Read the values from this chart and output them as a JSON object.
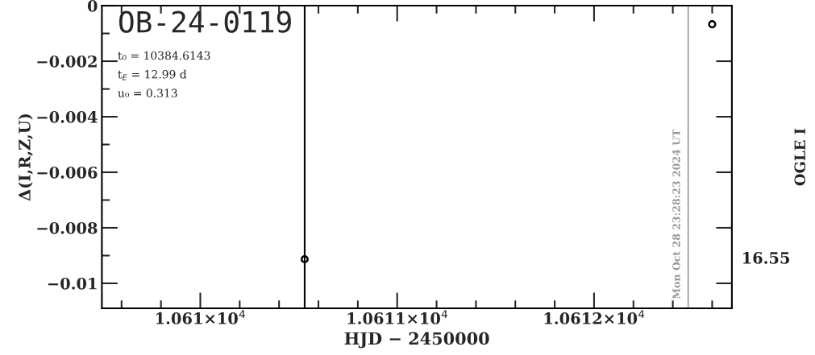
{
  "chart_data": {
    "type": "scatter",
    "title": "OB-24-0119",
    "annotations": [
      "t₀ = 10384.6143",
      "t$_{E}$ = 12.99 d",
      "u₀ = 0.313",
      "16.55",
      "OGLE I",
      "Mon Oct 28 23:28:23 2024 UT"
    ],
    "xlabel": "HJD − 2450000",
    "ylabel": "Δ(I,R,Z,U)",
    "series": [
      {
        "color": "#000000",
        "x": [
          10612.6
        ],
        "values": [
          -0.00067
        ],
        "marker": "circle"
      },
      {
        "color": "#000000",
        "x": [
          10610.53
        ],
        "values": [
          -0.00913
        ],
        "marker": "circle"
      }
    ],
    "xlim": [
      10609.5,
      10612.7
    ],
    "xticks": [
      {
        "value": 10609.6,
        "label": null
      },
      {
        "value": 10609.8,
        "label": null
      },
      {
        "value": 10610,
        "label": "1.061×10$^{4}$"
      },
      {
        "value": 10610.2,
        "label": null
      },
      {
        "value": 10610.4,
        "label": null
      },
      {
        "value": 10610.6,
        "label": null
      },
      {
        "value": 10610.8,
        "label": null
      },
      {
        "value": 10611,
        "label": "1.0611×10$^{4}$"
      },
      {
        "value": 10611.2,
        "label": null
      },
      {
        "value": 10611.4,
        "label": null
      },
      {
        "value": 10611.6,
        "label": null
      },
      {
        "value": 10611.8,
        "label": null
      },
      {
        "value": 10612,
        "label": "1.0612×10$^{4}$"
      },
      {
        "value": 10612.2,
        "label": null
      },
      {
        "value": 10612.4,
        "label": null
      },
      {
        "value": 10612.6,
        "label": null
      }
    ],
    "ylim": [
      -0.0109,
      0
    ],
    "yticks": [
      0,
      {
        "value": -0.001,
        "label": null
      },
      {
        "value": -0.002,
        "label": "−0.002"
      },
      {
        "value": -0.003,
        "label": null
      },
      {
        "value": -0.004,
        "label": "−0.004"
      },
      {
        "value": -0.005,
        "label": null
      },
      {
        "value": -0.006,
        "label": "−0.006"
      },
      {
        "value": -0.007,
        "label": null
      },
      {
        "value": -0.008,
        "label": "−0.008"
      },
      {
        "value": -0.009,
        "label": null
      },
      {
        "value": -0.01,
        "label": "−0.01"
      }
    ],
    "ref_lines": [
      {
        "axis": "x",
        "value": 10610.53,
        "color": "#000000"
      },
      {
        "axis": "x",
        "value": 10612.478,
        "color": "#999999"
      }
    ],
    "grid": false,
    "legend": false
  }
}
